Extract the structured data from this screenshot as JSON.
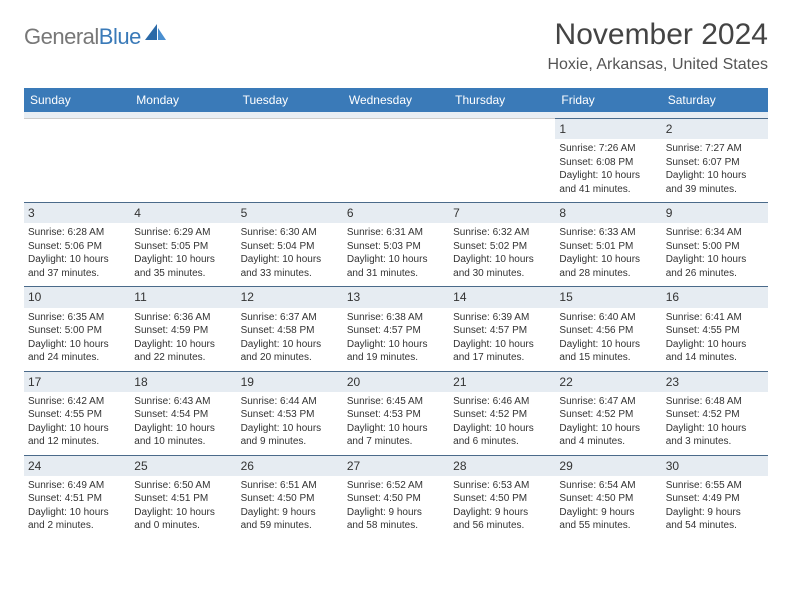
{
  "brand": {
    "general": "General",
    "blue": "Blue"
  },
  "title": "November 2024",
  "location": "Hoxie, Arkansas, United States",
  "colors": {
    "header_bg": "#3a7ab8",
    "daynum_bg": "#e6ecf2",
    "border": "#4a6a8a"
  },
  "weekdays": [
    "Sunday",
    "Monday",
    "Tuesday",
    "Wednesday",
    "Thursday",
    "Friday",
    "Saturday"
  ],
  "weeks": [
    [
      null,
      null,
      null,
      null,
      null,
      {
        "day": "1",
        "sunrise": "Sunrise: 7:26 AM",
        "sunset": "Sunset: 6:08 PM",
        "daylight1": "Daylight: 10 hours",
        "daylight2": "and 41 minutes."
      },
      {
        "day": "2",
        "sunrise": "Sunrise: 7:27 AM",
        "sunset": "Sunset: 6:07 PM",
        "daylight1": "Daylight: 10 hours",
        "daylight2": "and 39 minutes."
      }
    ],
    [
      {
        "day": "3",
        "sunrise": "Sunrise: 6:28 AM",
        "sunset": "Sunset: 5:06 PM",
        "daylight1": "Daylight: 10 hours",
        "daylight2": "and 37 minutes."
      },
      {
        "day": "4",
        "sunrise": "Sunrise: 6:29 AM",
        "sunset": "Sunset: 5:05 PM",
        "daylight1": "Daylight: 10 hours",
        "daylight2": "and 35 minutes."
      },
      {
        "day": "5",
        "sunrise": "Sunrise: 6:30 AM",
        "sunset": "Sunset: 5:04 PM",
        "daylight1": "Daylight: 10 hours",
        "daylight2": "and 33 minutes."
      },
      {
        "day": "6",
        "sunrise": "Sunrise: 6:31 AM",
        "sunset": "Sunset: 5:03 PM",
        "daylight1": "Daylight: 10 hours",
        "daylight2": "and 31 minutes."
      },
      {
        "day": "7",
        "sunrise": "Sunrise: 6:32 AM",
        "sunset": "Sunset: 5:02 PM",
        "daylight1": "Daylight: 10 hours",
        "daylight2": "and 30 minutes."
      },
      {
        "day": "8",
        "sunrise": "Sunrise: 6:33 AM",
        "sunset": "Sunset: 5:01 PM",
        "daylight1": "Daylight: 10 hours",
        "daylight2": "and 28 minutes."
      },
      {
        "day": "9",
        "sunrise": "Sunrise: 6:34 AM",
        "sunset": "Sunset: 5:00 PM",
        "daylight1": "Daylight: 10 hours",
        "daylight2": "and 26 minutes."
      }
    ],
    [
      {
        "day": "10",
        "sunrise": "Sunrise: 6:35 AM",
        "sunset": "Sunset: 5:00 PM",
        "daylight1": "Daylight: 10 hours",
        "daylight2": "and 24 minutes."
      },
      {
        "day": "11",
        "sunrise": "Sunrise: 6:36 AM",
        "sunset": "Sunset: 4:59 PM",
        "daylight1": "Daylight: 10 hours",
        "daylight2": "and 22 minutes."
      },
      {
        "day": "12",
        "sunrise": "Sunrise: 6:37 AM",
        "sunset": "Sunset: 4:58 PM",
        "daylight1": "Daylight: 10 hours",
        "daylight2": "and 20 minutes."
      },
      {
        "day": "13",
        "sunrise": "Sunrise: 6:38 AM",
        "sunset": "Sunset: 4:57 PM",
        "daylight1": "Daylight: 10 hours",
        "daylight2": "and 19 minutes."
      },
      {
        "day": "14",
        "sunrise": "Sunrise: 6:39 AM",
        "sunset": "Sunset: 4:57 PM",
        "daylight1": "Daylight: 10 hours",
        "daylight2": "and 17 minutes."
      },
      {
        "day": "15",
        "sunrise": "Sunrise: 6:40 AM",
        "sunset": "Sunset: 4:56 PM",
        "daylight1": "Daylight: 10 hours",
        "daylight2": "and 15 minutes."
      },
      {
        "day": "16",
        "sunrise": "Sunrise: 6:41 AM",
        "sunset": "Sunset: 4:55 PM",
        "daylight1": "Daylight: 10 hours",
        "daylight2": "and 14 minutes."
      }
    ],
    [
      {
        "day": "17",
        "sunrise": "Sunrise: 6:42 AM",
        "sunset": "Sunset: 4:55 PM",
        "daylight1": "Daylight: 10 hours",
        "daylight2": "and 12 minutes."
      },
      {
        "day": "18",
        "sunrise": "Sunrise: 6:43 AM",
        "sunset": "Sunset: 4:54 PM",
        "daylight1": "Daylight: 10 hours",
        "daylight2": "and 10 minutes."
      },
      {
        "day": "19",
        "sunrise": "Sunrise: 6:44 AM",
        "sunset": "Sunset: 4:53 PM",
        "daylight1": "Daylight: 10 hours",
        "daylight2": "and 9 minutes."
      },
      {
        "day": "20",
        "sunrise": "Sunrise: 6:45 AM",
        "sunset": "Sunset: 4:53 PM",
        "daylight1": "Daylight: 10 hours",
        "daylight2": "and 7 minutes."
      },
      {
        "day": "21",
        "sunrise": "Sunrise: 6:46 AM",
        "sunset": "Sunset: 4:52 PM",
        "daylight1": "Daylight: 10 hours",
        "daylight2": "and 6 minutes."
      },
      {
        "day": "22",
        "sunrise": "Sunrise: 6:47 AM",
        "sunset": "Sunset: 4:52 PM",
        "daylight1": "Daylight: 10 hours",
        "daylight2": "and 4 minutes."
      },
      {
        "day": "23",
        "sunrise": "Sunrise: 6:48 AM",
        "sunset": "Sunset: 4:52 PM",
        "daylight1": "Daylight: 10 hours",
        "daylight2": "and 3 minutes."
      }
    ],
    [
      {
        "day": "24",
        "sunrise": "Sunrise: 6:49 AM",
        "sunset": "Sunset: 4:51 PM",
        "daylight1": "Daylight: 10 hours",
        "daylight2": "and 2 minutes."
      },
      {
        "day": "25",
        "sunrise": "Sunrise: 6:50 AM",
        "sunset": "Sunset: 4:51 PM",
        "daylight1": "Daylight: 10 hours",
        "daylight2": "and 0 minutes."
      },
      {
        "day": "26",
        "sunrise": "Sunrise: 6:51 AM",
        "sunset": "Sunset: 4:50 PM",
        "daylight1": "Daylight: 9 hours",
        "daylight2": "and 59 minutes."
      },
      {
        "day": "27",
        "sunrise": "Sunrise: 6:52 AM",
        "sunset": "Sunset: 4:50 PM",
        "daylight1": "Daylight: 9 hours",
        "daylight2": "and 58 minutes."
      },
      {
        "day": "28",
        "sunrise": "Sunrise: 6:53 AM",
        "sunset": "Sunset: 4:50 PM",
        "daylight1": "Daylight: 9 hours",
        "daylight2": "and 56 minutes."
      },
      {
        "day": "29",
        "sunrise": "Sunrise: 6:54 AM",
        "sunset": "Sunset: 4:50 PM",
        "daylight1": "Daylight: 9 hours",
        "daylight2": "and 55 minutes."
      },
      {
        "day": "30",
        "sunrise": "Sunrise: 6:55 AM",
        "sunset": "Sunset: 4:49 PM",
        "daylight1": "Daylight: 9 hours",
        "daylight2": "and 54 minutes."
      }
    ]
  ]
}
